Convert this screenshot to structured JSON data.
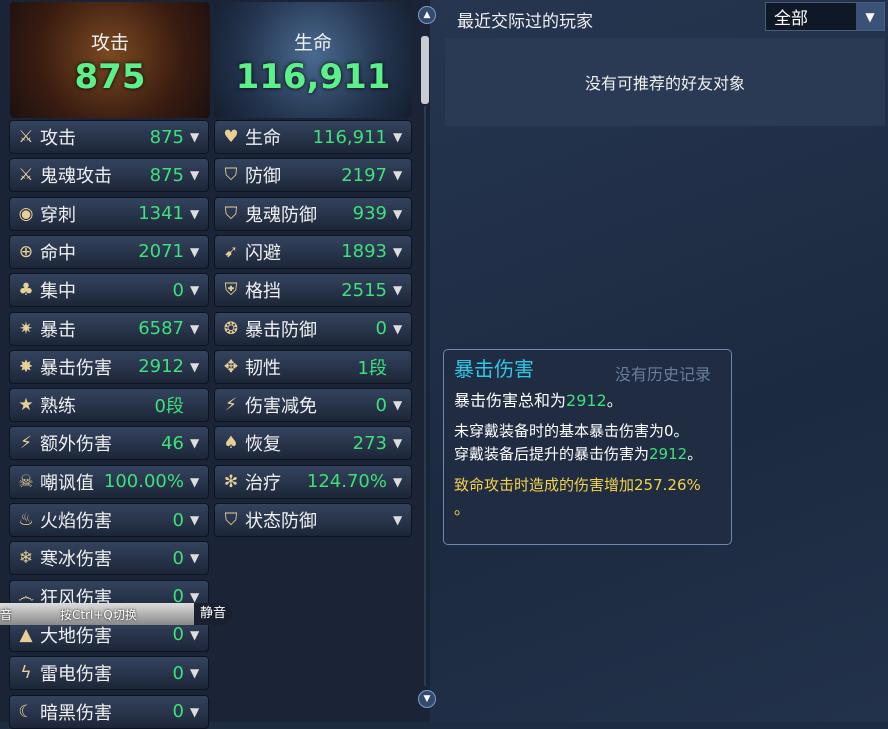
{
  "header": {
    "attack_title": "攻击",
    "attack_value": "875",
    "life_title": "生命",
    "life_value": "116,911"
  },
  "left_stats": [
    {
      "label": "攻击",
      "value": "875",
      "icon": "sword-icon",
      "glyph": "⚔",
      "arrow": true
    },
    {
      "label": "鬼魂攻击",
      "value": "875",
      "icon": "ghost-sword-icon",
      "glyph": "⚔",
      "arrow": true
    },
    {
      "label": "穿刺",
      "value": "1341",
      "icon": "pierce-icon",
      "glyph": "◉",
      "arrow": true
    },
    {
      "label": "命中",
      "value": "2071",
      "icon": "target-icon",
      "glyph": "⊕",
      "arrow": true
    },
    {
      "label": "集中",
      "value": "0",
      "icon": "focus-icon",
      "glyph": "♣",
      "arrow": true
    },
    {
      "label": "暴击",
      "value": "6587",
      "icon": "crit-icon",
      "glyph": "✷",
      "arrow": true
    },
    {
      "label": "暴击伤害",
      "value": "2912",
      "icon": "crit-damage-icon",
      "glyph": "✸",
      "arrow": true
    },
    {
      "label": "熟练",
      "value": "0段",
      "icon": "mastery-icon",
      "glyph": "★",
      "arrow": false
    },
    {
      "label": "额外伤害",
      "value": "46",
      "icon": "extra-damage-icon",
      "glyph": "⚡",
      "arrow": true
    },
    {
      "label": "嘲讽值",
      "value": "100.00%",
      "icon": "skull-icon",
      "glyph": "☠",
      "arrow": true
    },
    {
      "label": "火焰伤害",
      "value": "0",
      "icon": "fire-icon",
      "glyph": "♨",
      "arrow": true
    },
    {
      "label": "寒冰伤害",
      "value": "0",
      "icon": "ice-icon",
      "glyph": "❄",
      "arrow": true
    },
    {
      "label": "狂风伤害",
      "value": "0",
      "icon": "wind-icon",
      "glyph": "෴",
      "arrow": true
    },
    {
      "label": "大地伤害",
      "value": "0",
      "icon": "earth-icon",
      "glyph": "▲",
      "arrow": true
    },
    {
      "label": "雷电伤害",
      "value": "0",
      "icon": "lightning-icon",
      "glyph": "ϟ",
      "arrow": true
    },
    {
      "label": "暗黑伤害",
      "value": "0",
      "icon": "dark-moon-icon",
      "glyph": "☾",
      "arrow": true
    }
  ],
  "right_stats": [
    {
      "label": "生命",
      "value": "116,911",
      "icon": "heart-icon",
      "glyph": "♥",
      "arrow": true
    },
    {
      "label": "防御",
      "value": "2197",
      "icon": "shield-icon",
      "glyph": "⛉",
      "arrow": true
    },
    {
      "label": "鬼魂防御",
      "value": "939",
      "icon": "ghost-shield-icon",
      "glyph": "⛉",
      "arrow": true
    },
    {
      "label": "闪避",
      "value": "1893",
      "icon": "evade-icon",
      "glyph": "➹",
      "arrow": true
    },
    {
      "label": "格挡",
      "value": "2515",
      "icon": "block-icon",
      "glyph": "⛨",
      "arrow": true
    },
    {
      "label": "暴击防御",
      "value": "0",
      "icon": "crit-defense-icon",
      "glyph": "❂",
      "arrow": true
    },
    {
      "label": "韧性",
      "value": "1段",
      "icon": "tenacity-icon",
      "glyph": "✥",
      "arrow": false
    },
    {
      "label": "伤害减免",
      "value": "0",
      "icon": "damage-reduce-icon",
      "glyph": "⚡",
      "arrow": true
    },
    {
      "label": "恢复",
      "value": "273",
      "icon": "recovery-icon",
      "glyph": "♠",
      "arrow": true
    },
    {
      "label": "治疗",
      "value": "124.70%",
      "icon": "heal-icon",
      "glyph": "✻",
      "arrow": true
    },
    {
      "label": "状态防御",
      "value": "",
      "icon": "status-defense-icon",
      "glyph": "⛉",
      "arrow": true
    }
  ],
  "social": {
    "title": "最近交际过的玩家",
    "filter": "全部",
    "empty": "没有可推荐的好友对象",
    "no_history": "没有历史记录"
  },
  "tooltip": {
    "title": "暴击伤害",
    "l1a": "暴击伤害总和为",
    "l1b": "2912",
    "l1c": "。",
    "l2": "未穿戴装备时的基本暴击伤害为0。",
    "l3a": "穿戴装备后提升的暴击伤害为",
    "l3b": "2912",
    "l3c": "。",
    "l4": "致命攻击时造成的伤害增加257.26%",
    "l5": "。"
  },
  "voice": {
    "left": "音",
    "hint": "按Ctrl+Q切换",
    "mute": "静音"
  }
}
